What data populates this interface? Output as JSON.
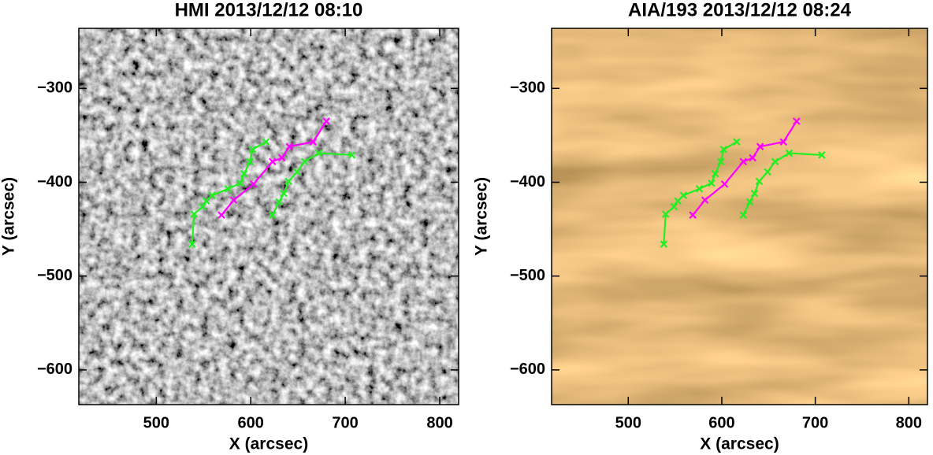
{
  "chart_data": [
    {
      "type": "line",
      "title": "HMI 2013/12/12 08:10",
      "x_label": "X (arcsec)",
      "y_label": "Y (arcsec)",
      "xlim": [
        418,
        820
      ],
      "ylim": [
        -637,
        -236
      ],
      "xticks": [
        500,
        600,
        700,
        800
      ],
      "yticks": [
        {
          "value": -300,
          "label": "−300"
        },
        {
          "value": -400,
          "label": "−400"
        },
        {
          "value": -500,
          "label": "−500"
        },
        {
          "value": -600,
          "label": "−600"
        }
      ],
      "series": [
        {
          "color": "#22ee22",
          "x": [
            538,
            540,
            549,
            553,
            559,
            576,
            589,
            593,
            599,
            602,
            616
          ],
          "values": [
            -466,
            -434,
            -426,
            -420,
            -414,
            -407,
            -401,
            -391,
            -378,
            -365,
            -357
          ]
        },
        {
          "color": "#ff00ff",
          "x": [
            569,
            582,
            603,
            623,
            633,
            641,
            666,
            680
          ],
          "values": [
            -435,
            -419,
            -402,
            -378,
            -374,
            -362,
            -357,
            -335
          ]
        },
        {
          "color": "#22ee22",
          "x": [
            623,
            630,
            635,
            640,
            649,
            657,
            672,
            707
          ],
          "values": [
            -435,
            -421,
            -412,
            -399,
            -389,
            -378,
            -369,
            -371
          ]
        }
      ]
    },
    {
      "type": "line",
      "title": "AIA/193 2013/12/12 08:24",
      "x_label": "X (arcsec)",
      "y_label": "Y (arcsec)",
      "xlim": [
        418,
        820
      ],
      "ylim": [
        -637,
        -236
      ],
      "xticks": [
        500,
        600,
        700,
        800
      ],
      "yticks": [
        {
          "value": -300,
          "label": "−300"
        },
        {
          "value": -400,
          "label": "−400"
        },
        {
          "value": -500,
          "label": "−500"
        },
        {
          "value": -600,
          "label": "−600"
        }
      ],
      "series": [
        {
          "color": "#22ee22",
          "x": [
            538,
            540,
            549,
            553,
            559,
            576,
            589,
            593,
            599,
            602,
            616
          ],
          "values": [
            -466,
            -434,
            -426,
            -420,
            -414,
            -407,
            -401,
            -391,
            -378,
            -365,
            -357
          ]
        },
        {
          "color": "#ff00ff",
          "x": [
            569,
            582,
            603,
            623,
            633,
            641,
            666,
            680
          ],
          "values": [
            -435,
            -419,
            -402,
            -378,
            -374,
            -362,
            -357,
            -335
          ]
        },
        {
          "color": "#22ee22",
          "x": [
            623,
            630,
            635,
            640,
            649,
            657,
            672,
            707
          ],
          "values": [
            -435,
            -421,
            -412,
            -399,
            -389,
            -378,
            -369,
            -371
          ]
        }
      ]
    }
  ]
}
